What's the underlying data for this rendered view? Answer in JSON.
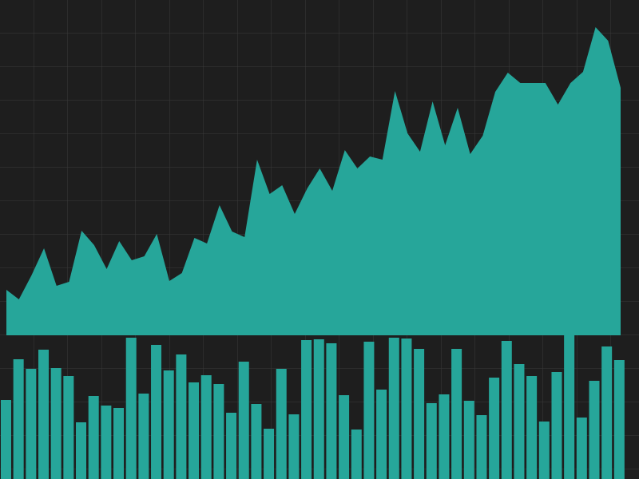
{
  "chart_data": [
    {
      "type": "area",
      "color": "#26a69a",
      "ylim": [
        0,
        420
      ],
      "grid": true,
      "values": [
        57,
        45,
        75,
        109,
        62,
        67,
        131,
        113,
        83,
        118,
        94,
        99,
        127,
        68,
        78,
        122,
        115,
        163,
        130,
        123,
        220,
        177,
        188,
        152,
        184,
        209,
        181,
        232,
        209,
        224,
        220,
        306,
        253,
        230,
        293,
        238,
        285,
        227,
        250,
        305,
        329,
        316,
        316,
        316,
        289,
        316,
        330,
        386,
        369,
        310
      ]
    },
    {
      "type": "bar",
      "color": "#26a69a",
      "ylim": [
        0,
        180
      ],
      "values": [
        99,
        150,
        138,
        162,
        139,
        129,
        71,
        104,
        92,
        89,
        177,
        107,
        168,
        136,
        156,
        121,
        130,
        119,
        83,
        147,
        94,
        63,
        138,
        81,
        174,
        175,
        170,
        105,
        62,
        172,
        112,
        177,
        176,
        163,
        95,
        106,
        163,
        98,
        80,
        127,
        173,
        144,
        129,
        72,
        134,
        180,
        77,
        123,
        166,
        149
      ]
    }
  ]
}
